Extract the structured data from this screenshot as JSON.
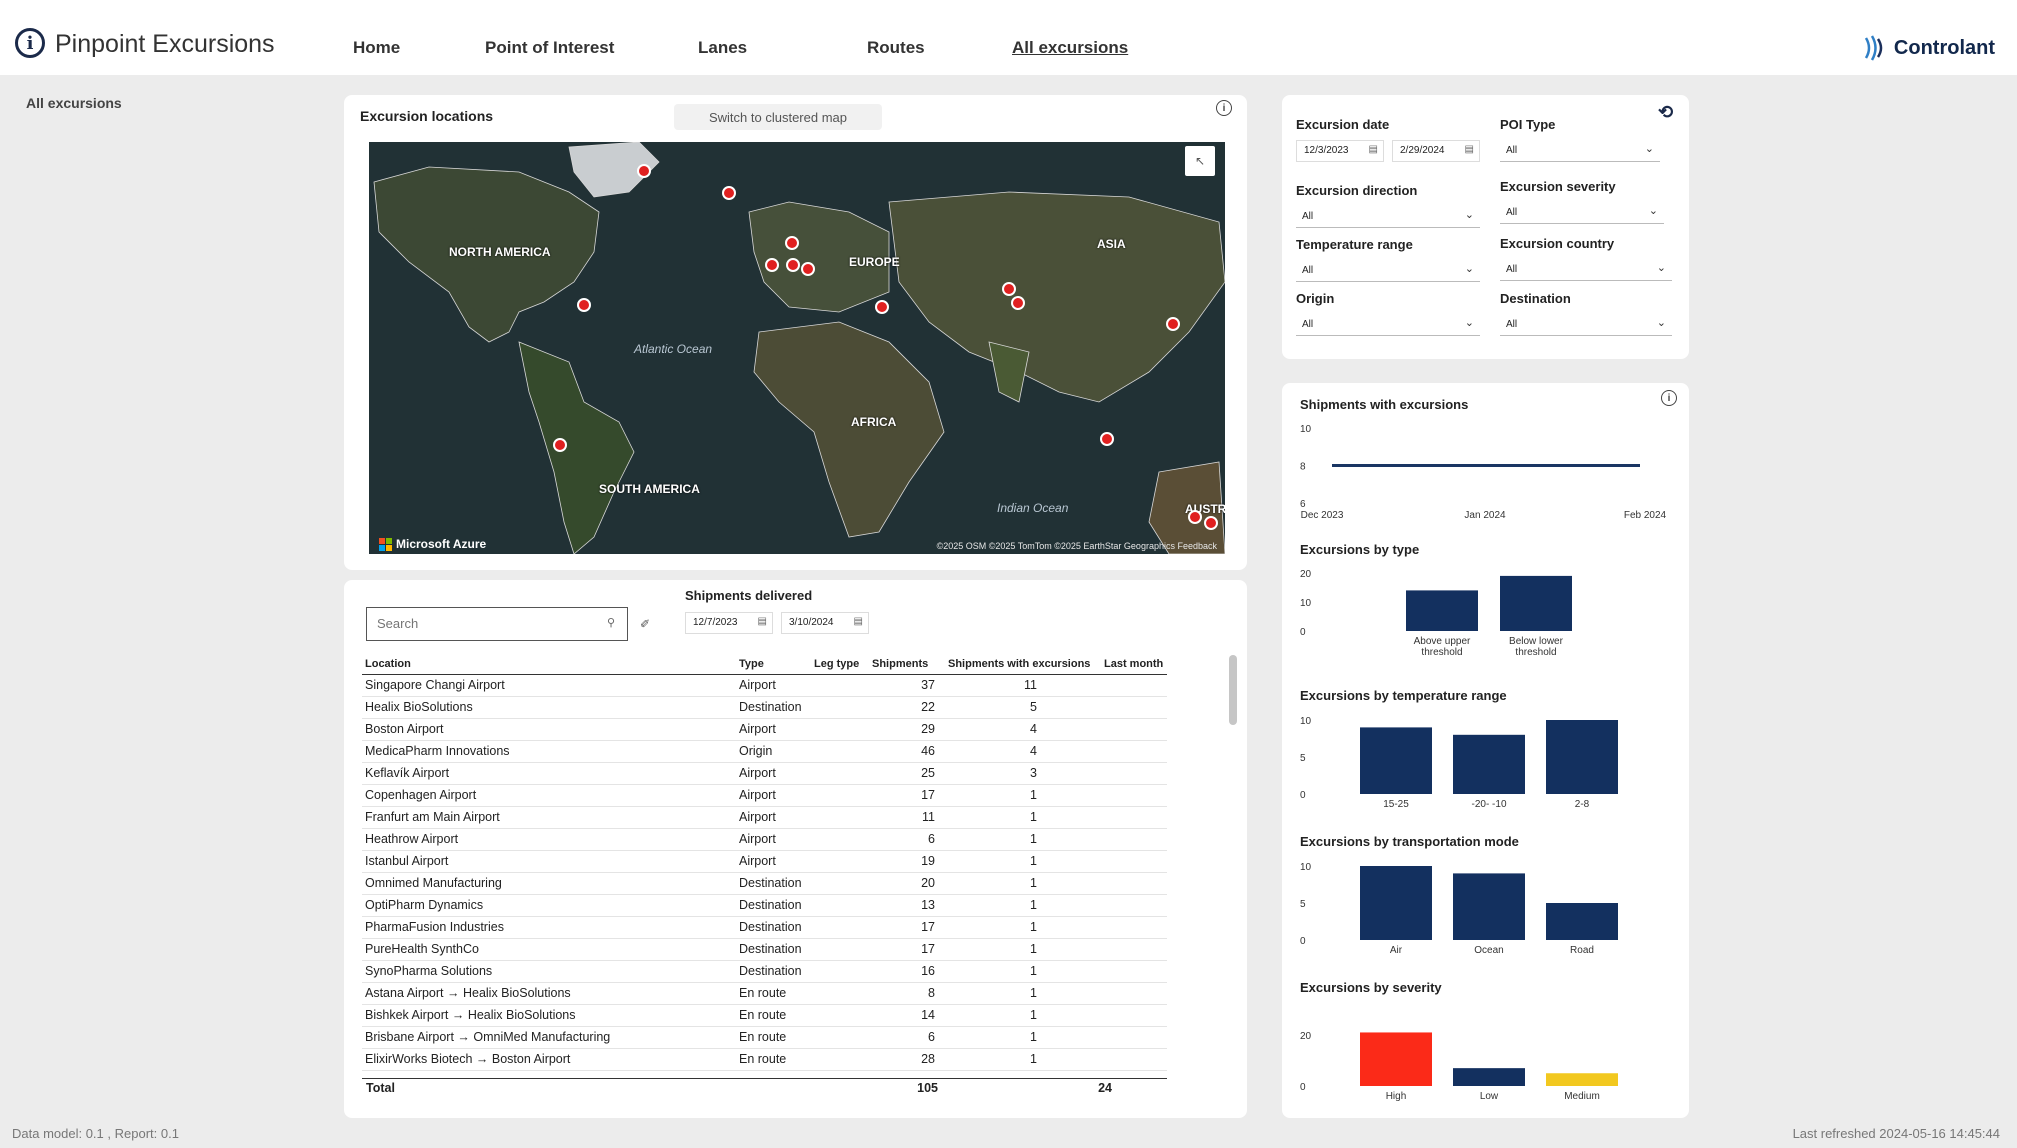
{
  "app": {
    "title": "Pinpoint Excursions",
    "logo_glyph": "i",
    "brand": "Controlant"
  },
  "nav": [
    {
      "label": "Home",
      "active": false
    },
    {
      "label": "Point of Interest",
      "active": false
    },
    {
      "label": "Lanes",
      "active": false
    },
    {
      "label": "Routes",
      "active": false
    },
    {
      "label": "All excursions",
      "active": true
    }
  ],
  "sidebar": {
    "label": "All excursions"
  },
  "map_card": {
    "title": "Excursion locations",
    "switch_button": "Switch to clustered map",
    "regions": [
      "NORTH AMERICA",
      "EUROPE",
      "ASIA",
      "AFRICA",
      "SOUTH AMERICA",
      "AUSTR"
    ],
    "oceans": [
      "Atlantic Ocean",
      "Indian Ocean"
    ],
    "attribution": "©2025 OSM  ©2025 TomTom  ©2025 EarthStar Geographics  Feedback",
    "provider": "Microsoft Azure"
  },
  "table_card": {
    "search_placeholder": "Search",
    "title": "Shipments delivered",
    "date_from": "12/7/2023",
    "date_to": "3/10/2024",
    "columns": [
      "Location",
      "Type",
      "Leg type",
      "Shipments",
      "Shipments with excursions",
      "Last month"
    ],
    "rows": [
      [
        "Singapore Changi Airport",
        "Airport",
        "",
        "37",
        "11",
        ""
      ],
      [
        "Healix BioSolutions",
        "Destination",
        "",
        "22",
        "5",
        ""
      ],
      [
        "Boston Airport",
        "Airport",
        "",
        "29",
        "4",
        ""
      ],
      [
        "MedicaPharm Innovations",
        "Origin",
        "",
        "46",
        "4",
        ""
      ],
      [
        "Keflavík Airport",
        "Airport",
        "",
        "25",
        "3",
        ""
      ],
      [
        "Copenhagen Airport",
        "Airport",
        "",
        "17",
        "1",
        ""
      ],
      [
        "Franfurt am Main Airport",
        "Airport",
        "",
        "11",
        "1",
        ""
      ],
      [
        "Heathrow Airport",
        "Airport",
        "",
        "6",
        "1",
        ""
      ],
      [
        "Istanbul Airport",
        "Airport",
        "",
        "19",
        "1",
        ""
      ],
      [
        "Omnimed Manufacturing",
        "Destination",
        "",
        "20",
        "1",
        ""
      ],
      [
        "OptiPharm Dynamics",
        "Destination",
        "",
        "13",
        "1",
        ""
      ],
      [
        "PharmaFusion Industries",
        "Destination",
        "",
        "17",
        "1",
        ""
      ],
      [
        "PureHealth SynthCo",
        "Destination",
        "",
        "17",
        "1",
        ""
      ],
      [
        "SynoPharma Solutions",
        "Destination",
        "",
        "16",
        "1",
        ""
      ],
      [
        "Astana Airport → Healix BioSolutions",
        "En route",
        "",
        "8",
        "1",
        ""
      ],
      [
        "Bishkek Airport → Healix BioSolutions",
        "En route",
        "",
        "14",
        "1",
        ""
      ],
      [
        "Brisbane Airport → OmniMed Manufacturing",
        "En route",
        "",
        "6",
        "1",
        ""
      ],
      [
        "ElixirWorks Biotech → Boston Airport",
        "En route",
        "",
        "28",
        "1",
        ""
      ]
    ],
    "total": {
      "label": "Total",
      "shipments": "105",
      "excursions": "24"
    }
  },
  "filters": {
    "excursion_date_label": "Excursion date",
    "date_from": "12/3/2023",
    "date_to": "2/29/2024",
    "poi_type_label": "POI Type",
    "poi_type_value": "All",
    "direction_label": "Excursion direction",
    "direction_value": "All",
    "severity_label": "Excursion severity",
    "severity_value": "All",
    "temp_label": "Temperature range",
    "temp_value": "All",
    "country_label": "Excursion country",
    "country_value": "All",
    "origin_label": "Origin",
    "origin_value": "All",
    "destination_label": "Destination",
    "destination_value": "All"
  },
  "charts_card": {
    "line_title": "Shipments with excursions",
    "type_title": "Excursions by type",
    "temp_title": "Excursions by temperature range",
    "mode_title": "Excursions by transportation mode",
    "severity_title": "Excursions by severity"
  },
  "chart_data": [
    {
      "type": "line",
      "title": "Shipments with excursions",
      "x": [
        "Dec 2023",
        "Jan 2024",
        "Feb 2024"
      ],
      "values": [
        8,
        8,
        8
      ],
      "ylim": [
        6,
        10
      ],
      "yticks": [
        "10",
        "8",
        "6"
      ],
      "color": "#1a3563"
    },
    {
      "type": "bar",
      "title": "Excursions by type",
      "categories": [
        "Above upper threshold",
        "Below lower threshold"
      ],
      "values": [
        14,
        19
      ],
      "ylim": [
        0,
        20
      ],
      "yticks": [
        "20",
        "10",
        "0"
      ],
      "color": "#13305f"
    },
    {
      "type": "bar",
      "title": "Excursions by temperature range",
      "categories": [
        "15-25",
        "-20- -10",
        "2-8"
      ],
      "values": [
        9,
        8,
        10
      ],
      "ylim": [
        0,
        10
      ],
      "yticks": [
        "10",
        "5",
        "0"
      ],
      "color": "#13305f"
    },
    {
      "type": "bar",
      "title": "Excursions by transportation mode",
      "categories": [
        "Air",
        "Ocean",
        "Road"
      ],
      "values": [
        10,
        9,
        5
      ],
      "ylim": [
        0,
        10
      ],
      "yticks": [
        "10",
        "5",
        "0"
      ],
      "color": "#13305f"
    },
    {
      "type": "bar",
      "title": "Excursions by severity",
      "categories": [
        "High",
        "Low",
        "Medium"
      ],
      "values": [
        21,
        7,
        5
      ],
      "ylim": [
        0,
        20
      ],
      "yticks": [
        "20",
        "0"
      ],
      "colors": [
        "#fb2a18",
        "#13305f",
        "#f2c81f"
      ]
    }
  ],
  "footer": {
    "left": "Data model: 0.1 , Report: 0.1",
    "right": "Last refreshed 2024-05-16 14:45:44"
  }
}
